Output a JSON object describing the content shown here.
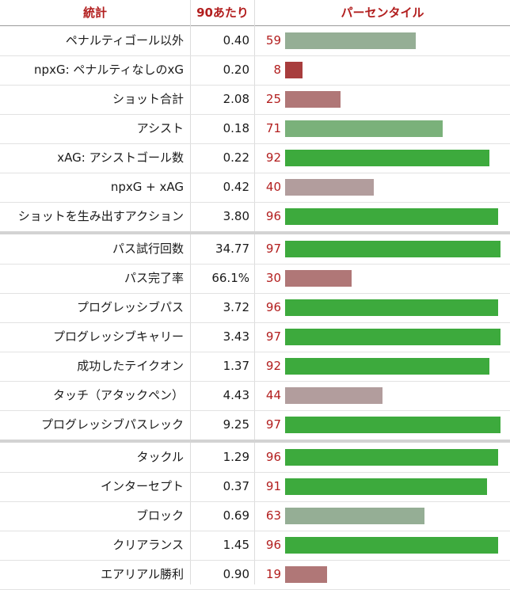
{
  "header": {
    "stat": "統計",
    "per90": "90あたり",
    "percentile": "パーセンタイル"
  },
  "colors": {
    "high": "#3daa3d",
    "mid_high": "#7ab17a",
    "mid": "#95ae95",
    "neutral": "#b29d9d",
    "low_mid": "#b07777",
    "low": "#a83d3d",
    "header_text": "#b21e1e"
  },
  "groups": [
    {
      "rows": [
        {
          "stat": "ペナルティゴール以外",
          "per90": "0.40",
          "pct": "59",
          "pct_value": 59,
          "color": "#95ae95"
        },
        {
          "stat": "npxG: ペナルティなしのxG",
          "per90": "0.20",
          "pct": "8",
          "pct_value": 8,
          "color": "#a83d3d"
        },
        {
          "stat": "ショット合計",
          "per90": "2.08",
          "pct": "25",
          "pct_value": 25,
          "color": "#b07777"
        },
        {
          "stat": "アシスト",
          "per90": "0.18",
          "pct": "71",
          "pct_value": 71,
          "color": "#7ab17a"
        },
        {
          "stat": "xAG: アシストゴール数",
          "per90": "0.22",
          "pct": "92",
          "pct_value": 92,
          "color": "#3daa3d"
        },
        {
          "stat": "npxG + xAG",
          "per90": "0.42",
          "pct": "40",
          "pct_value": 40,
          "color": "#b29d9d"
        },
        {
          "stat": "ショットを生み出すアクション",
          "per90": "3.80",
          "pct": "96",
          "pct_value": 96,
          "color": "#3daa3d"
        }
      ]
    },
    {
      "rows": [
        {
          "stat": "パス試行回数",
          "per90": "34.77",
          "pct": "97",
          "pct_value": 97,
          "color": "#3daa3d"
        },
        {
          "stat": "パス完了率",
          "per90": "66.1%",
          "pct": "30",
          "pct_value": 30,
          "color": "#b07777"
        },
        {
          "stat": "プログレッシブパス",
          "per90": "3.72",
          "pct": "96",
          "pct_value": 96,
          "color": "#3daa3d"
        },
        {
          "stat": "プログレッシブキャリー",
          "per90": "3.43",
          "pct": "97",
          "pct_value": 97,
          "color": "#3daa3d"
        },
        {
          "stat": "成功したテイクオン",
          "per90": "1.37",
          "pct": "92",
          "pct_value": 92,
          "color": "#3daa3d"
        },
        {
          "stat": "タッチ（アタックペン）",
          "per90": "4.43",
          "pct": "44",
          "pct_value": 44,
          "color": "#b29d9d"
        },
        {
          "stat": "プログレッシブパスレック",
          "per90": "9.25",
          "pct": "97",
          "pct_value": 97,
          "color": "#3daa3d"
        }
      ]
    },
    {
      "rows": [
        {
          "stat": "タックル",
          "per90": "1.29",
          "pct": "96",
          "pct_value": 96,
          "color": "#3daa3d"
        },
        {
          "stat": "インターセプト",
          "per90": "0.37",
          "pct": "91",
          "pct_value": 91,
          "color": "#3daa3d"
        },
        {
          "stat": "ブロック",
          "per90": "0.69",
          "pct": "63",
          "pct_value": 63,
          "color": "#95ae95"
        },
        {
          "stat": "クリアランス",
          "per90": "1.45",
          "pct": "96",
          "pct_value": 96,
          "color": "#3daa3d"
        },
        {
          "stat": "エアリアル勝利",
          "per90": "0.90",
          "pct": "19",
          "pct_value": 19,
          "color": "#b07777"
        }
      ]
    }
  ]
}
